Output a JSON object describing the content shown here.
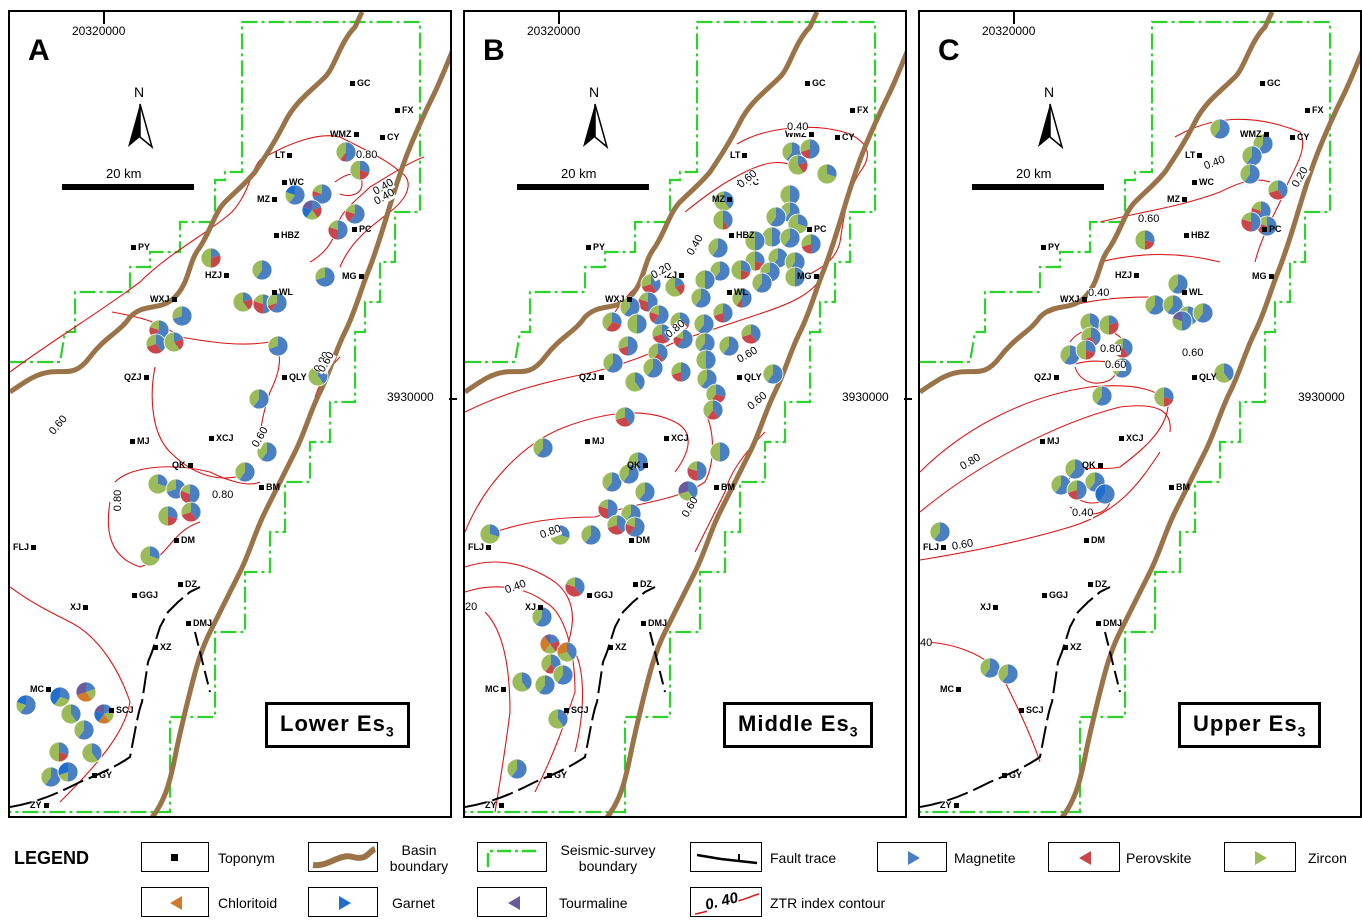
{
  "panels": [
    {
      "label": "A",
      "unit": "Lower Es",
      "unit_sub": "3",
      "coord_x": "20320000",
      "coord_y": ""
    },
    {
      "label": "B",
      "unit": "Middle Es",
      "unit_sub": "3",
      "coord_x": "20320000",
      "coord_y": "3930000"
    },
    {
      "label": "C",
      "unit": "Upper Es",
      "unit_sub": "3",
      "coord_x": "20320000",
      "coord_y": "3930000"
    }
  ],
  "scale_bar": "20 km",
  "north": "N",
  "toponyms": [
    "GC",
    "FX",
    "CY",
    "WMZ",
    "LT",
    "WC",
    "MZ",
    "HBZ",
    "PC",
    "PY",
    "HZJ",
    "MG",
    "WXJ",
    "WL",
    "QZJ",
    "QLY",
    "MJ",
    "XCJ",
    "QK",
    "BM",
    "DM",
    "FLJ",
    "GGJ",
    "DZ",
    "XJ",
    "DMJ",
    "XZ",
    "MC",
    "SCJ",
    "GY",
    "ZY"
  ],
  "contours": {
    "A": [
      "0.80",
      "0.40",
      "0.40",
      "0.80",
      "0.60",
      "0.80",
      "0.60",
      "0.60",
      "0.80"
    ],
    "B": [
      "0.40",
      "0.60",
      "0.40",
      "0.20",
      "0.80",
      "0.60",
      "0.60",
      "0.60",
      "0.80",
      "0.40",
      "20"
    ],
    "C": [
      "0.20",
      "0.40",
      "0.60",
      "0.40",
      "0.80",
      "0.60",
      "0.60",
      "0.80",
      "0.40",
      "0.60",
      "40"
    ]
  },
  "legend": {
    "title": "LEGEND",
    "items": {
      "toponym": "Toponym",
      "basin": "Basin boundary",
      "seismic": "Seismic-survey boundary",
      "fault": "Fault  trace",
      "magnetite": "Magnetite",
      "perovskite": "Perovskite",
      "zircon": "Zircon",
      "chloritoid": "Chloritoid",
      "garnet": "Garnet",
      "tourmaline": "Tourmaline",
      "ztr": "ZTR index contour",
      "ztr_sample": "0. 40"
    }
  },
  "colors": {
    "magnetite": "#4a7fc1",
    "perovskite": "#c9464b",
    "zircon": "#9bbb59",
    "chloritoid": "#d07b2a",
    "garnet": "#1f6fd0",
    "tourmaline": "#6a5a9e",
    "basin": "#9a7448",
    "seismic": "#2ed12e",
    "contour": "#d81818"
  }
}
